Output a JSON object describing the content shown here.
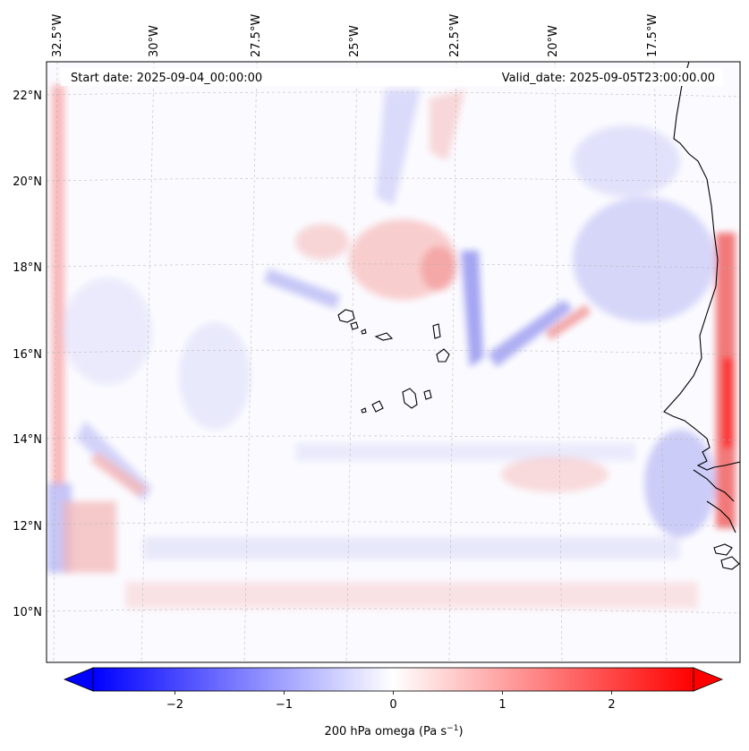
{
  "map": {
    "start_date": "Start date: 2025-09-04_00:00:00",
    "valid_date": "Valid_date: 2025-09-05T23:00:00.00",
    "lon_labels": [
      "32.5°W",
      "30°W",
      "27.5°W",
      "25°W",
      "22.5°W",
      "20°W",
      "17.5°W"
    ],
    "lat_labels": [
      "22°N",
      "20°N",
      "18°N",
      "16°N",
      "14°N",
      "12°N",
      "10°N"
    ]
  },
  "colorbar": {
    "ticks": [
      "−2",
      "−1",
      "0",
      "1",
      "2"
    ],
    "tick_values": [
      -2,
      -1,
      0,
      1,
      2
    ],
    "min": -2.75,
    "max": 2.75,
    "label": "200 hPa omega (Pa s",
    "label_sup": "−1",
    "label_close": ")",
    "negative_color": "#0000ff",
    "zero_color": "#ffffff",
    "positive_color": "#ff0000"
  },
  "colors": {
    "coastline": "#000000",
    "gridline": "#b0b0b0"
  }
}
